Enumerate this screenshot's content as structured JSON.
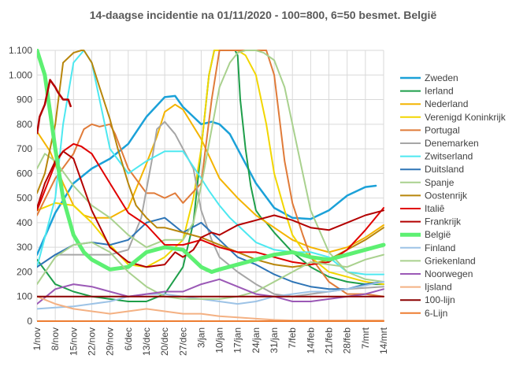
{
  "chart_data": {
    "type": "line",
    "title": "14-daagse incidentie na 01/11/2020 - 100=800, 6=50 besmet. België",
    "xlabel": "",
    "ylabel": "",
    "ylim": [
      0,
      1100
    ],
    "y_ticks": [
      0,
      100,
      200,
      300,
      400,
      500,
      600,
      700,
      800,
      900,
      1000,
      1100
    ],
    "y_tick_labels": [
      "0",
      "100",
      "200",
      "300",
      "400",
      "500",
      "600",
      "700",
      "800",
      "900",
      "1.000",
      "1.100"
    ],
    "x_range": [
      0,
      133
    ],
    "x_ticks": [
      0,
      7,
      14,
      21,
      28,
      35,
      42,
      49,
      56,
      63,
      70,
      77,
      84,
      91,
      98,
      105,
      112,
      119,
      126,
      133
    ],
    "x_tick_labels": [
      "1/nov",
      "8/nov",
      "15/nov",
      "22/nov",
      "29/nov",
      "6/dec",
      "13/dec",
      "20/dec",
      "27/dec",
      "3/jan",
      "10/jan",
      "17/jan",
      "24/jan",
      "31/jan",
      "7/feb",
      "14/feb",
      "21/feb",
      "28/feb",
      "7/mrt",
      "14/mrt"
    ],
    "grid": true,
    "legend_position": "right",
    "series": [
      {
        "name": "Zweden",
        "color": "#1ba1d8",
        "width": 2.5,
        "x": [
          0,
          7,
          14,
          21,
          28,
          35,
          42,
          49,
          53,
          56,
          60,
          63,
          67,
          70,
          74,
          77,
          84,
          91,
          98,
          105,
          112,
          119,
          126,
          130
        ],
        "y": [
          270,
          440,
          560,
          620,
          660,
          720,
          830,
          910,
          915,
          870,
          830,
          800,
          810,
          800,
          760,
          700,
          560,
          460,
          420,
          415,
          450,
          510,
          545,
          550
        ]
      },
      {
        "name": "Ierland",
        "color": "#1e9e4a",
        "width": 2,
        "x": [
          0,
          7,
          14,
          21,
          28,
          35,
          42,
          49,
          56,
          60,
          63,
          66,
          68,
          70,
          72,
          74,
          76,
          77,
          78,
          80,
          82,
          84,
          86,
          88,
          91,
          98,
          105,
          112,
          119,
          126,
          133
        ],
        "y": [
          250,
          150,
          120,
          100,
          90,
          80,
          80,
          110,
          220,
          400,
          700,
          1000,
          1100,
          1100,
          1100,
          1100,
          1100,
          1080,
          900,
          700,
          550,
          450,
          420,
          400,
          360,
          280,
          220,
          180,
          160,
          150,
          150
        ]
      },
      {
        "name": "Nederland",
        "color": "#f4b400",
        "width": 2,
        "x": [
          0,
          5,
          10,
          14,
          18,
          21,
          28,
          35,
          42,
          46,
          49,
          53,
          56,
          63,
          70,
          77,
          84,
          91,
          98,
          105,
          112,
          119,
          126,
          133
        ],
        "y": [
          770,
          690,
          560,
          470,
          430,
          420,
          420,
          460,
          640,
          750,
          850,
          880,
          860,
          740,
          580,
          500,
          430,
          380,
          330,
          300,
          280,
          300,
          340,
          390
        ]
      },
      {
        "name": "Verenigd Koninkrijk",
        "color": "#f2d600",
        "width": 2,
        "x": [
          0,
          7,
          14,
          21,
          28,
          35,
          42,
          49,
          56,
          60,
          63,
          66,
          68,
          70,
          73,
          77,
          80,
          84,
          88,
          91,
          95,
          98,
          102,
          105,
          112,
          119,
          126,
          133
        ],
        "y": [
          450,
          480,
          470,
          400,
          310,
          230,
          220,
          260,
          330,
          500,
          700,
          1000,
          1100,
          1100,
          1100,
          1100,
          1080,
          1000,
          800,
          600,
          450,
          350,
          290,
          260,
          200,
          180,
          160,
          150
        ]
      },
      {
        "name": "Portugal",
        "color": "#e07b39",
        "width": 2,
        "x": [
          0,
          7,
          14,
          18,
          21,
          24,
          28,
          30,
          35,
          42,
          45,
          49,
          53,
          56,
          63,
          67,
          70,
          74,
          77,
          80,
          84,
          87,
          88,
          91,
          95,
          98,
          102,
          105,
          112,
          119,
          126,
          133
        ],
        "y": [
          430,
          580,
          680,
          780,
          800,
          790,
          800,
          760,
          620,
          520,
          520,
          500,
          520,
          480,
          560,
          900,
          1100,
          1100,
          1100,
          1100,
          1100,
          1100,
          1100,
          1000,
          650,
          480,
          350,
          260,
          160,
          110,
          110,
          100
        ]
      },
      {
        "name": "Denemarken",
        "color": "#a6a6a6",
        "width": 2,
        "x": [
          0,
          7,
          14,
          21,
          28,
          35,
          40,
          44,
          46,
          49,
          53,
          56,
          60,
          63,
          67,
          70,
          77,
          84,
          91,
          98,
          105,
          112,
          119,
          126,
          133
        ],
        "y": [
          220,
          270,
          270,
          270,
          270,
          290,
          420,
          650,
          780,
          810,
          760,
          700,
          620,
          450,
          330,
          260,
          200,
          150,
          110,
          100,
          110,
          120,
          130,
          135,
          140
        ]
      },
      {
        "name": "Zwitserland",
        "color": "#4de8f0",
        "width": 2,
        "x": [
          0,
          7,
          10,
          14,
          18,
          21,
          28,
          35,
          42,
          49,
          56,
          63,
          66,
          70,
          74,
          77,
          84,
          91,
          98,
          105,
          112,
          119,
          126,
          133
        ],
        "y": [
          220,
          500,
          800,
          1050,
          1100,
          1050,
          700,
          600,
          650,
          690,
          690,
          580,
          530,
          470,
          420,
          390,
          320,
          290,
          280,
          280,
          260,
          200,
          190,
          190
        ]
      },
      {
        "name": "Duitsland",
        "color": "#2e75b6",
        "width": 2,
        "x": [
          0,
          7,
          14,
          21,
          28,
          35,
          42,
          49,
          56,
          63,
          70,
          77,
          84,
          91,
          98,
          105,
          112,
          119,
          126,
          133
        ],
        "y": [
          220,
          270,
          310,
          320,
          310,
          330,
          400,
          420,
          360,
          400,
          330,
          260,
          230,
          190,
          160,
          140,
          130,
          130,
          150,
          160
        ]
      },
      {
        "name": "Spanje",
        "color": "#a9d18e",
        "width": 2,
        "x": [
          0,
          3,
          7,
          14,
          21,
          28,
          35,
          42,
          49,
          56,
          60,
          63,
          67,
          70,
          74,
          77,
          80,
          84,
          87,
          91,
          95,
          98,
          102,
          105,
          112,
          119,
          126,
          133
        ],
        "y": [
          620,
          680,
          650,
          550,
          470,
          420,
          350,
          300,
          330,
          330,
          400,
          550,
          780,
          950,
          1050,
          1090,
          1100,
          1100,
          1090,
          1060,
          950,
          800,
          600,
          450,
          280,
          200,
          170,
          160
        ]
      },
      {
        "name": "Oostenrijk",
        "color": "#b8860b",
        "width": 2,
        "x": [
          0,
          3,
          7,
          10,
          14,
          17,
          18,
          21,
          24,
          28,
          31,
          35,
          38,
          42,
          46,
          49,
          56,
          63,
          70,
          77,
          84,
          91,
          98,
          105,
          112,
          119,
          126,
          133
        ],
        "y": [
          520,
          600,
          800,
          1050,
          1090,
          1100,
          1100,
          1050,
          950,
          820,
          700,
          560,
          470,
          420,
          380,
          380,
          360,
          340,
          310,
          280,
          250,
          230,
          220,
          230,
          250,
          290,
          330,
          380
        ]
      },
      {
        "name": "Italiê",
        "color": "#e00000",
        "width": 2,
        "x": [
          0,
          7,
          10,
          14,
          17,
          21,
          28,
          35,
          42,
          49,
          56,
          63,
          70,
          77,
          84,
          91,
          98,
          105,
          112,
          119,
          126,
          133
        ],
        "y": [
          450,
          640,
          690,
          720,
          710,
          680,
          560,
          440,
          390,
          310,
          310,
          330,
          300,
          280,
          280,
          260,
          240,
          230,
          240,
          290,
          370,
          460
        ]
      },
      {
        "name": "Frankrijk",
        "color": "#b30000",
        "width": 2,
        "x": [
          0,
          3,
          7,
          10,
          14,
          21,
          28,
          35,
          42,
          49,
          53,
          56,
          60,
          63,
          67,
          70,
          77,
          84,
          91,
          98,
          105,
          112,
          119,
          126,
          133
        ],
        "y": [
          460,
          560,
          650,
          690,
          660,
          450,
          300,
          240,
          220,
          230,
          280,
          260,
          290,
          340,
          360,
          350,
          390,
          410,
          430,
          410,
          380,
          370,
          400,
          430,
          450
        ]
      },
      {
        "name": "België",
        "color": "#5df072",
        "width": 5,
        "x": [
          0,
          3,
          7,
          10,
          14,
          18,
          21,
          28,
          35,
          42,
          49,
          56,
          63,
          67,
          70,
          77,
          84,
          91,
          98,
          105,
          112,
          119,
          126,
          133
        ],
        "y": [
          1100,
          1000,
          700,
          500,
          350,
          280,
          250,
          210,
          220,
          280,
          300,
          290,
          220,
          200,
          210,
          230,
          250,
          270,
          280,
          260,
          250,
          270,
          290,
          310
        ]
      },
      {
        "name": "Finland",
        "color": "#9dc3e6",
        "width": 2,
        "x": [
          0,
          7,
          14,
          21,
          28,
          35,
          42,
          49,
          56,
          63,
          70,
          77,
          84,
          91,
          98,
          105,
          112,
          119,
          126,
          133
        ],
        "y": [
          50,
          55,
          60,
          70,
          80,
          100,
          110,
          110,
          100,
          90,
          80,
          70,
          80,
          100,
          110,
          120,
          120,
          130,
          145,
          160
        ]
      },
      {
        "name": "Griekenland",
        "color": "#a9d18e",
        "width": 2,
        "x": [
          0,
          7,
          14,
          21,
          28,
          35,
          42,
          49,
          56,
          63,
          70,
          77,
          84,
          91,
          98,
          105,
          112,
          119,
          126,
          133
        ],
        "y": [
          150,
          260,
          310,
          320,
          280,
          200,
          140,
          100,
          90,
          90,
          90,
          100,
          120,
          160,
          200,
          240,
          230,
          220,
          250,
          270
        ]
      },
      {
        "name": "Noorwegen",
        "color": "#9b59b6",
        "width": 2,
        "x": [
          0,
          7,
          14,
          21,
          28,
          35,
          42,
          49,
          56,
          63,
          70,
          77,
          84,
          91,
          98,
          105,
          112,
          119,
          126,
          133
        ],
        "y": [
          70,
          130,
          150,
          140,
          120,
          100,
          110,
          120,
          120,
          150,
          170,
          140,
          110,
          100,
          80,
          80,
          90,
          100,
          110,
          130
        ]
      },
      {
        "name": "Ijsland",
        "color": "#f4b183",
        "width": 2,
        "x": [
          0,
          7,
          14,
          21,
          28,
          35,
          42,
          49,
          56,
          63,
          70,
          77,
          84,
          91,
          98,
          105,
          112,
          119,
          126,
          133
        ],
        "y": [
          100,
          70,
          50,
          40,
          30,
          40,
          50,
          40,
          30,
          30,
          20,
          15,
          10,
          5,
          3,
          3,
          3,
          3,
          3,
          3
        ]
      },
      {
        "name": "100-lijn",
        "color": "#8b0000",
        "width": 2,
        "x": [
          0,
          133
        ],
        "y": [
          100,
          100
        ]
      },
      {
        "name": "6-Lijn",
        "color": "#ed7d31",
        "width": 2,
        "x": [
          0,
          133
        ],
        "y": [
          0,
          0
        ]
      }
    ],
    "extra_segment": {
      "series": "Frankrijk",
      "x": [
        0,
        1,
        3,
        5,
        7,
        8,
        10,
        12,
        13
      ],
      "y": [
        760,
        830,
        880,
        980,
        950,
        930,
        900,
        900,
        870
      ]
    }
  }
}
